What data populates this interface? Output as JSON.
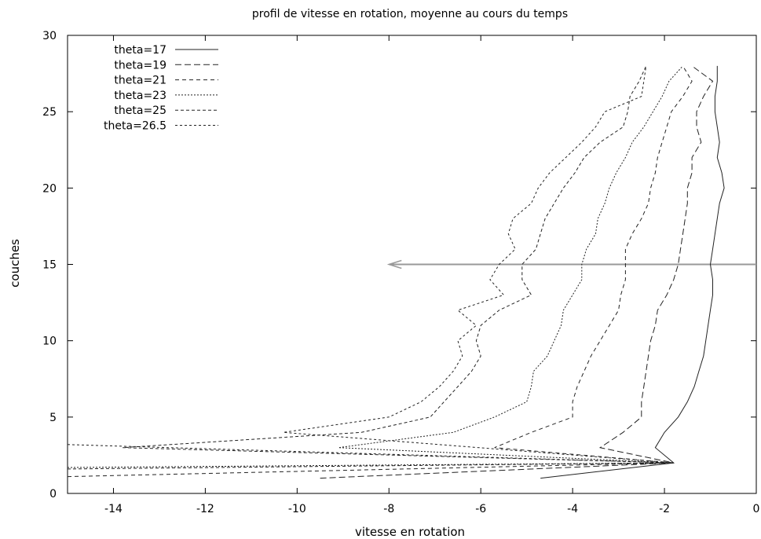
{
  "chart_data": {
    "type": "line",
    "title": "profil de vitesse en rotation, moyenne au cours du temps",
    "xlabel": "vitesse en rotation",
    "ylabel": "couches",
    "xlim": [
      -15,
      0
    ],
    "ylim": [
      0,
      30
    ],
    "xticks": [
      -14,
      -12,
      -10,
      -8,
      -6,
      -4,
      -2,
      0
    ],
    "yticks": [
      0,
      5,
      10,
      15,
      20,
      25,
      30
    ],
    "grid": false,
    "legend_position": "top-left",
    "series": [
      {
        "name": "theta=17",
        "dash": "none",
        "points": [
          [
            -4.7,
            1
          ],
          [
            -1.8,
            2
          ],
          [
            -2.2,
            3
          ],
          [
            -2.0,
            4
          ],
          [
            -1.7,
            5
          ],
          [
            -1.5,
            6
          ],
          [
            -1.35,
            7
          ],
          [
            -1.25,
            8
          ],
          [
            -1.15,
            9
          ],
          [
            -1.1,
            10
          ],
          [
            -1.05,
            11
          ],
          [
            -1.0,
            12
          ],
          [
            -0.95,
            13
          ],
          [
            -0.95,
            14
          ],
          [
            -1.0,
            15
          ],
          [
            -0.95,
            16
          ],
          [
            -0.9,
            17
          ],
          [
            -0.85,
            18
          ],
          [
            -0.8,
            19
          ],
          [
            -0.7,
            20
          ],
          [
            -0.75,
            21
          ],
          [
            -0.85,
            22
          ],
          [
            -0.8,
            23
          ],
          [
            -0.85,
            24
          ],
          [
            -0.9,
            25
          ],
          [
            -0.9,
            26
          ],
          [
            -0.85,
            27
          ],
          [
            -0.85,
            28
          ]
        ]
      },
      {
        "name": "theta=19",
        "dash": "8,4",
        "points": [
          [
            -9.5,
            1
          ],
          [
            -1.8,
            2
          ],
          [
            -3.4,
            3
          ],
          [
            -2.9,
            4
          ],
          [
            -2.5,
            5
          ],
          [
            -2.5,
            6
          ],
          [
            -2.45,
            7
          ],
          [
            -2.4,
            8
          ],
          [
            -2.35,
            9
          ],
          [
            -2.3,
            10
          ],
          [
            -2.2,
            11
          ],
          [
            -2.15,
            12
          ],
          [
            -1.95,
            13
          ],
          [
            -1.8,
            14
          ],
          [
            -1.7,
            15
          ],
          [
            -1.65,
            16
          ],
          [
            -1.6,
            17
          ],
          [
            -1.55,
            18
          ],
          [
            -1.5,
            19
          ],
          [
            -1.5,
            20
          ],
          [
            -1.4,
            21
          ],
          [
            -1.4,
            22
          ],
          [
            -1.2,
            23
          ],
          [
            -1.3,
            24
          ],
          [
            -1.3,
            25
          ],
          [
            -1.15,
            26
          ],
          [
            -0.95,
            27
          ],
          [
            -1.4,
            28
          ]
        ]
      },
      {
        "name": "theta=21",
        "dash": "5,4",
        "points": [
          [
            -15,
            1.1
          ],
          [
            -1.8,
            2
          ],
          [
            -5.7,
            3
          ],
          [
            -4.9,
            4
          ],
          [
            -4.0,
            5
          ],
          [
            -4.0,
            6
          ],
          [
            -3.9,
            7
          ],
          [
            -3.75,
            8
          ],
          [
            -3.6,
            9
          ],
          [
            -3.4,
            10
          ],
          [
            -3.2,
            11
          ],
          [
            -3.0,
            12
          ],
          [
            -2.95,
            13
          ],
          [
            -2.85,
            14
          ],
          [
            -2.85,
            15
          ],
          [
            -2.85,
            16
          ],
          [
            -2.7,
            17
          ],
          [
            -2.5,
            18
          ],
          [
            -2.35,
            19
          ],
          [
            -2.3,
            20
          ],
          [
            -2.2,
            21
          ],
          [
            -2.15,
            22
          ],
          [
            -2.05,
            23
          ],
          [
            -1.95,
            24
          ],
          [
            -1.85,
            25
          ],
          [
            -1.6,
            26
          ],
          [
            -1.4,
            27
          ],
          [
            -1.6,
            28
          ]
        ]
      },
      {
        "name": "theta=23",
        "dash": "2,2",
        "points": [
          [
            -15,
            1.7
          ],
          [
            -1.8,
            2
          ],
          [
            -9.1,
            3
          ],
          [
            -6.6,
            4
          ],
          [
            -5.7,
            5
          ],
          [
            -5.0,
            6
          ],
          [
            -4.9,
            7
          ],
          [
            -4.85,
            8
          ],
          [
            -4.55,
            9
          ],
          [
            -4.4,
            10
          ],
          [
            -4.25,
            11
          ],
          [
            -4.2,
            12
          ],
          [
            -4.0,
            13
          ],
          [
            -3.8,
            14
          ],
          [
            -3.8,
            15
          ],
          [
            -3.7,
            16
          ],
          [
            -3.5,
            17
          ],
          [
            -3.45,
            18
          ],
          [
            -3.3,
            19
          ],
          [
            -3.2,
            20
          ],
          [
            -3.05,
            21
          ],
          [
            -2.85,
            22
          ],
          [
            -2.7,
            23
          ],
          [
            -2.45,
            24
          ],
          [
            -2.25,
            25
          ],
          [
            -2.05,
            26
          ],
          [
            -1.9,
            27
          ],
          [
            -1.6,
            28
          ]
        ]
      },
      {
        "name": "theta=25",
        "dash": "4,3",
        "points": [
          [
            -15,
            1.6
          ],
          [
            -1.8,
            2
          ],
          [
            -13.8,
            3
          ],
          [
            -8.6,
            4
          ],
          [
            -7.1,
            5
          ],
          [
            -6.8,
            6
          ],
          [
            -6.5,
            7
          ],
          [
            -6.2,
            8
          ],
          [
            -6.0,
            9
          ],
          [
            -6.1,
            10
          ],
          [
            -6.0,
            11
          ],
          [
            -5.6,
            12
          ],
          [
            -4.9,
            13
          ],
          [
            -5.1,
            14
          ],
          [
            -5.1,
            15
          ],
          [
            -4.8,
            16
          ],
          [
            -4.7,
            17
          ],
          [
            -4.6,
            18
          ],
          [
            -4.4,
            19
          ],
          [
            -4.2,
            20
          ],
          [
            -3.95,
            21
          ],
          [
            -3.75,
            22
          ],
          [
            -3.4,
            23
          ],
          [
            -2.9,
            24
          ],
          [
            -2.8,
            25
          ],
          [
            -2.75,
            26
          ],
          [
            -2.55,
            27
          ],
          [
            -2.4,
            28
          ]
        ]
      },
      {
        "name": "theta=26.5",
        "dash": "3,3",
        "points": [
          [
            -15,
            3.2
          ],
          [
            -1.8,
            2
          ],
          [
            -10.3,
            4
          ],
          [
            -8.0,
            5
          ],
          [
            -7.3,
            6
          ],
          [
            -6.9,
            7
          ],
          [
            -6.6,
            8
          ],
          [
            -6.4,
            9
          ],
          [
            -6.5,
            10
          ],
          [
            -6.1,
            11
          ],
          [
            -6.5,
            12
          ],
          [
            -5.5,
            13
          ],
          [
            -5.8,
            14
          ],
          [
            -5.6,
            15
          ],
          [
            -5.25,
            16
          ],
          [
            -5.4,
            17
          ],
          [
            -5.3,
            18
          ],
          [
            -4.9,
            19
          ],
          [
            -4.75,
            20
          ],
          [
            -4.5,
            21
          ],
          [
            -4.15,
            22
          ],
          [
            -3.8,
            23
          ],
          [
            -3.5,
            24
          ],
          [
            -3.3,
            25
          ],
          [
            -2.5,
            26
          ],
          [
            -2.45,
            27
          ],
          [
            -2.4,
            28
          ]
        ]
      }
    ],
    "annotation": {
      "type": "arrow",
      "from": [
        0,
        15
      ],
      "to": [
        -8.0,
        15
      ],
      "color": "#999999"
    }
  }
}
